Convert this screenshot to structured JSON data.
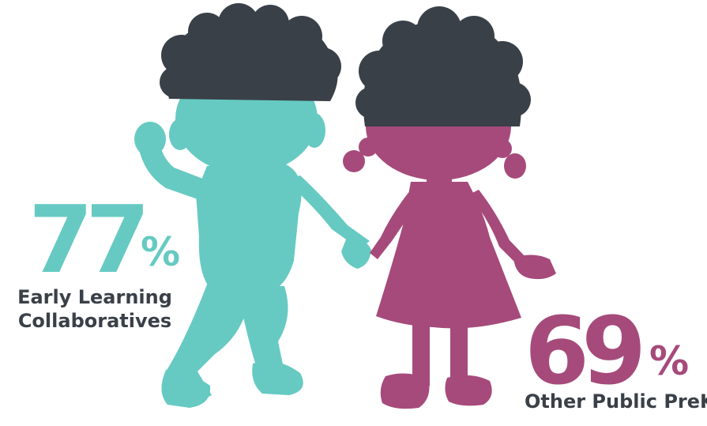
{
  "colors": {
    "teal": "#66cac2",
    "magenta": "#a64a7b",
    "hair": "#3a4048",
    "text": "#3a4048"
  },
  "left_stat": {
    "value": "77",
    "percent": "%",
    "label_line1": "Early Learning",
    "label_line2": "Collaboratives"
  },
  "right_stat": {
    "value": "69",
    "percent": "%",
    "label": "Other Public PreK"
  },
  "illustration": {
    "left_figure": "boy-silhouette",
    "right_figure": "girl-silhouette"
  }
}
